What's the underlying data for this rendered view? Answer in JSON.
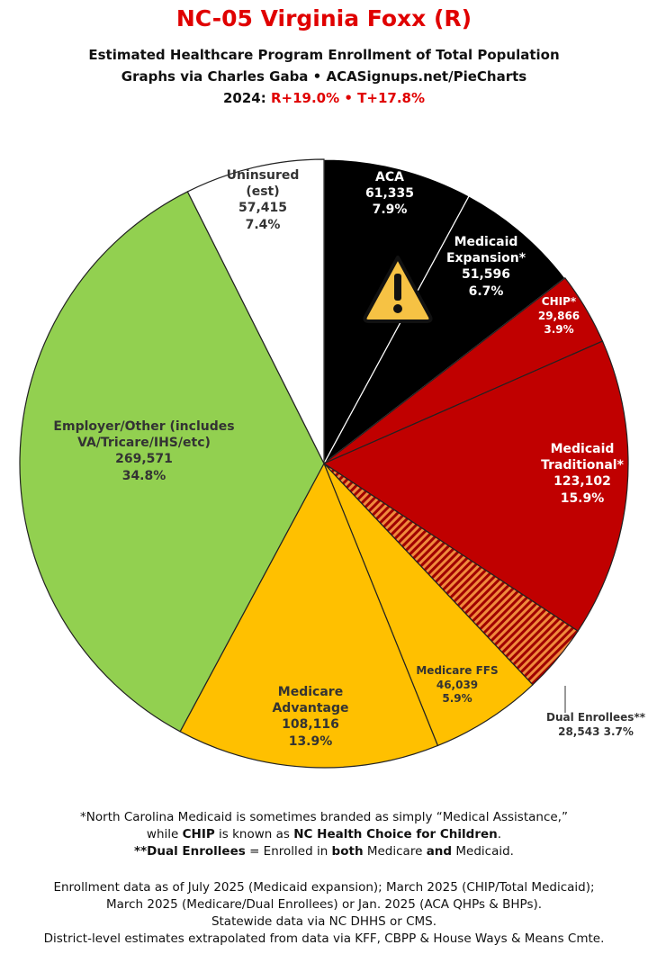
{
  "chart_data": {
    "type": "pie",
    "title": "NC-05 Virginia Foxx (R)",
    "subtitle": [
      "Estimated Healthcare Program Enrollment of Total Population",
      "Graphs via Charles Gaba  •  ACASignups.net/PieCharts"
    ],
    "election": {
      "label": "2024:",
      "result": "R+19.0%  • T+17.8%"
    },
    "categories": [
      "ACA",
      "Medicaid Expansion*",
      "CHIP*",
      "Medicaid Traditional*",
      "Dual Enrollees**",
      "Medicare FFS",
      "Medicare Advantage",
      "Employer/Other (includes VA/Tricare/IHS/etc)",
      "Uninsured (est)"
    ],
    "values": [
      61335,
      51596,
      29866,
      123102,
      28543,
      46039,
      108116,
      269571,
      57415
    ],
    "value_labels": [
      "61,335",
      "51,596",
      "29,866",
      "123,102",
      "28,543",
      "46,039",
      "108,116",
      "269,571",
      "57,415"
    ],
    "percent_labels": [
      "7.9%",
      "6.7%",
      "3.9%",
      "15.9%",
      "3.7%",
      "5.9%",
      "13.9%",
      "34.8%",
      "7.4%"
    ],
    "colors": [
      "#000000",
      "#000000",
      "#c00000",
      "#c00000",
      "hatch",
      "#ffc000",
      "#ffc000",
      "#92d050",
      "#ffffff"
    ],
    "footnotes": [
      [
        "*North Carolina Medicaid is sometimes branded as simply “Medical Assistance,”"
      ],
      [
        "while ",
        "CHIP",
        " is known as ",
        "NC Health Choice for Children",
        "."
      ],
      [
        "",
        "**Dual Enrollees",
        " = Enrolled in ",
        "both",
        " Medicare ",
        "and",
        " Medicaid."
      ]
    ],
    "sources": [
      "Enrollment data as of July 2025 (Medicaid expansion); March 2025 (CHIP/Total Medicaid);",
      "March 2025 (Medicare/Dual Enrollees) or Jan. 2025 (ACA QHPs & BHPs).",
      "Statewide data via NC DHHS or CMS.",
      "District-level estimates extrapolated from data via KFF, CBPP & House Ways & Means Cmte."
    ]
  }
}
